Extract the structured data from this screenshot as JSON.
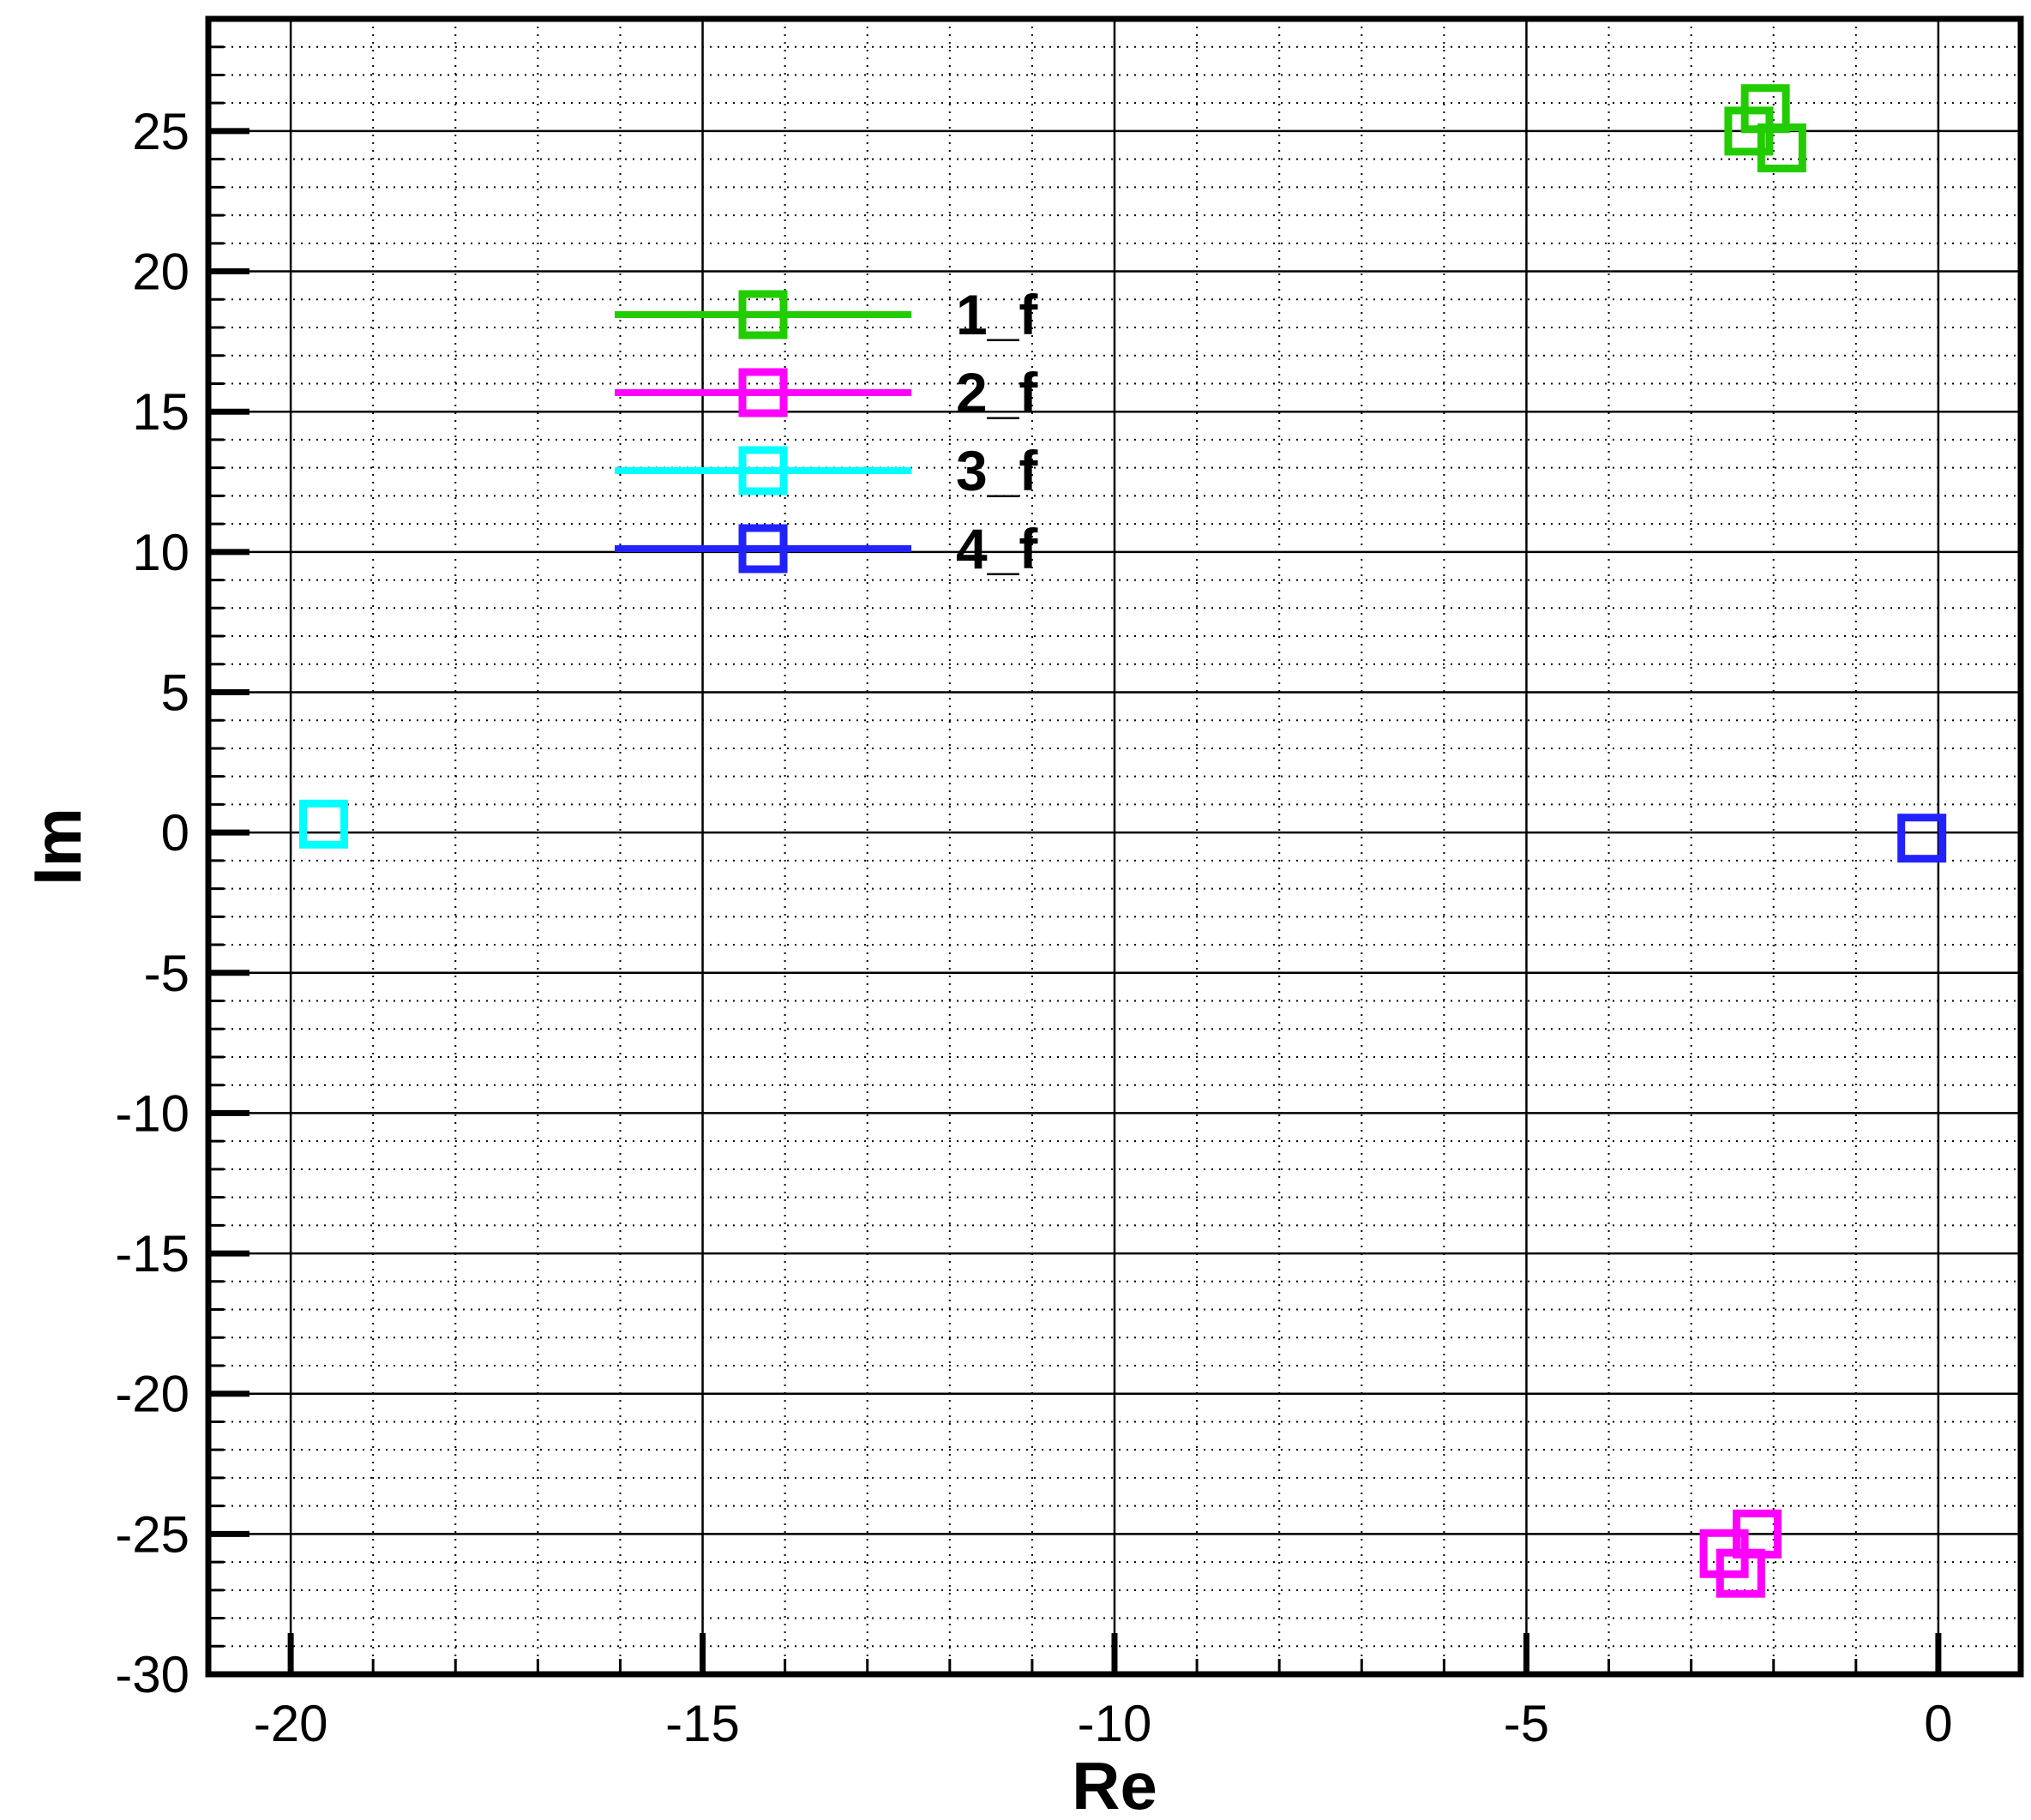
{
  "chart_data": {
    "type": "scatter",
    "xlabel": "Re",
    "ylabel": "Im",
    "xlim": [
      -21,
      1
    ],
    "ylim": [
      -30,
      29
    ],
    "grid": true,
    "grid_style": "major solid, minor dotted",
    "legend_position": "upper-left",
    "x_ticks": [
      -20,
      -15,
      -10,
      -5,
      0
    ],
    "x_tick_labels": [
      "-20",
      "-15",
      "-10",
      "-5",
      "0"
    ],
    "y_ticks": [
      25,
      20,
      15,
      10,
      5,
      0,
      -5,
      -10,
      -15,
      -20,
      -25,
      -30
    ],
    "y_tick_labels": [
      "25",
      "20",
      "15",
      "10",
      "5",
      "0",
      "-5",
      "-10",
      "-15",
      "-20",
      "-25",
      "-30"
    ],
    "series": [
      {
        "name": "1_f",
        "color": "#22cc00",
        "marker": "square",
        "points": [
          [
            -2.3,
            25.0
          ],
          [
            -2.1,
            25.8
          ],
          [
            -1.9,
            24.4
          ]
        ]
      },
      {
        "name": "2_f",
        "color": "#ff00ff",
        "marker": "square",
        "points": [
          [
            -2.6,
            -25.7
          ],
          [
            -2.2,
            -25.0
          ],
          [
            -2.4,
            -26.4
          ]
        ]
      },
      {
        "name": "3_f",
        "color": "#00ffff",
        "marker": "square",
        "points": [
          [
            -19.6,
            0.3
          ]
        ]
      },
      {
        "name": "4_f",
        "color": "#2222ff",
        "marker": "square",
        "points": [
          [
            -0.2,
            -0.2
          ]
        ]
      }
    ]
  }
}
